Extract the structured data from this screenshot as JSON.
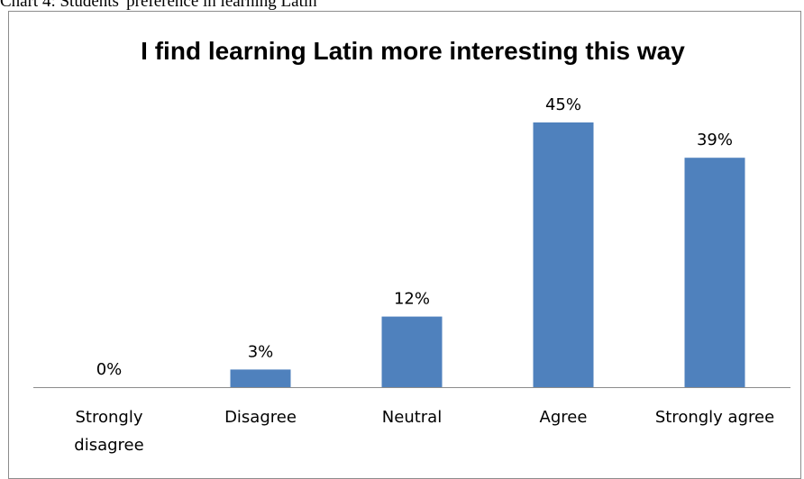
{
  "caption": "Chart 4: Students' preference in learning Latin",
  "chart_data": {
    "type": "bar",
    "title": "I find learning Latin more interesting this way",
    "categories": [
      "Strongly disagree",
      "Disagree",
      "Neutral",
      "Agree",
      "Strongly agree"
    ],
    "category_lines": [
      [
        "Strongly",
        "disagree"
      ],
      [
        "Disagree"
      ],
      [
        "Neutral"
      ],
      [
        "Agree"
      ],
      [
        "Strongly agree"
      ]
    ],
    "values": [
      0,
      3,
      12,
      45,
      39
    ],
    "data_labels": [
      "0%",
      "3%",
      "12%",
      "45%",
      "39%"
    ],
    "unit": "%",
    "xlabel": "",
    "ylabel": "",
    "ylim": [
      0,
      45
    ],
    "grid": false,
    "legend": "none",
    "bar_color": "#4f81bd",
    "axis_color": "#8c8c8c"
  }
}
